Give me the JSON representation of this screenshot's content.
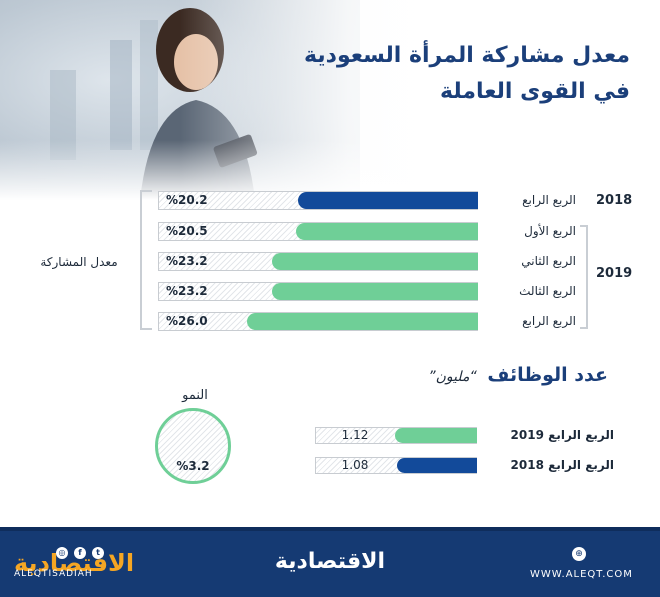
{
  "title": "معدل مشاركة المرأة السعودية في القوى العاملة",
  "participation_label": "معدل المشاركة",
  "colors": {
    "dark_blue": "#124a9a",
    "green": "#6fcf97",
    "title_blue": "#1b3f7a"
  },
  "chart_data": [
    {
      "type": "bar",
      "title": "معدل مشاركة المرأة السعودية في القوى العاملة",
      "categories": [
        "الربع الرابع",
        "الربع الأول",
        "الربع الثاني",
        "الربع الثالث",
        "الربع الرابع"
      ],
      "years": [
        "2018",
        "2019",
        "2019",
        "2019",
        "2019"
      ],
      "values": [
        20.2,
        20.5,
        23.2,
        23.2,
        26.0
      ],
      "labels": [
        "%20.2",
        "%20.5",
        "%23.2",
        "%23.2",
        "%26.0"
      ],
      "bar_colors": [
        "#124a9a",
        "#6fcf97",
        "#6fcf97",
        "#6fcf97",
        "#6fcf97"
      ],
      "ylabel": "معدل المشاركة",
      "ylim": [
        0,
        36
      ]
    },
    {
      "type": "bar",
      "title": "عدد الوظائف",
      "unit": "“مليون”",
      "categories": [
        "الربع الرابع 2019",
        "الربع الرابع 2018"
      ],
      "values": [
        1.12,
        1.08
      ],
      "labels": [
        "1.12",
        "1.08"
      ],
      "bar_colors": [
        "#6fcf97",
        "#124a9a"
      ],
      "ylim": [
        0,
        2.2
      ]
    }
  ],
  "year_labels": {
    "y2018": "2018",
    "y2019": "2019"
  },
  "growth": {
    "label": "النمو",
    "value": "%3.2"
  },
  "footer": {
    "logo_left": "الاقتصادية",
    "handle": "ALEQTISADIAH",
    "logo_center": "الاقتصادية",
    "website": "WWW.ALEQT.COM"
  }
}
